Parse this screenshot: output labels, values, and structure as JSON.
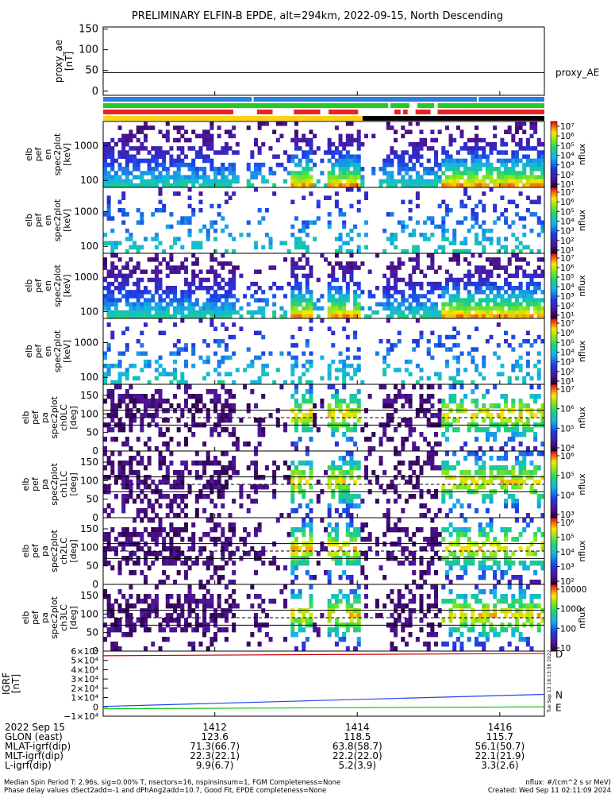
{
  "title": "PRELIMINARY ELFIN-B EPDE, alt=294km, 2022-09-15, North Descending",
  "chart_data": [
    {
      "type": "line",
      "panel": "proxy_ae",
      "ylabel": [
        "proxy_ae",
        "[nT]"
      ],
      "ylim": [
        -10,
        155
      ],
      "yticks": [
        "150",
        "100",
        "50",
        "0"
      ],
      "ytick_values": [
        150,
        100,
        50,
        0
      ],
      "series": [
        {
          "name": "proxy_AE",
          "x": [
            0,
            1
          ],
          "values": [
            45,
            45
          ],
          "color": "#000000"
        }
      ]
    },
    {
      "type": "table",
      "panel": "status-bars",
      "bars": [
        {
          "color": "#2a7de1",
          "segments": [
            [
              0,
              0.337
            ],
            [
              0.341,
              0.847
            ],
            [
              0.851,
              1
            ]
          ]
        },
        {
          "color": "#22cc22",
          "segments": [
            [
              0,
              0.646
            ],
            [
              0.651,
              0.694
            ],
            [
              0.712,
              0.75
            ],
            [
              0.758,
              1
            ]
          ]
        },
        {
          "color": "#ee2222",
          "segments": [
            [
              0,
              0.295
            ],
            [
              0.349,
              0.384
            ],
            [
              0.432,
              0.492
            ],
            [
              0.511,
              0.578
            ],
            [
              0.66,
              0.674
            ],
            [
              0.68,
              0.69
            ],
            [
              0.708,
              0.742
            ],
            [
              0.758,
              1
            ]
          ]
        },
        {
          "color": "#ffd21a",
          "segments": [
            [
              0,
              0.588
            ]
          ]
        },
        {
          "color": "#000000",
          "segments": [
            [
              0.588,
              1
            ]
          ]
        }
      ]
    },
    {
      "type": "heatmap",
      "panel": "pef-en-1",
      "ylabel": [
        "elb",
        "pef",
        "en",
        "spec2plot",
        "[keV]"
      ],
      "yscale": "log",
      "yticks": [
        "1000",
        "100"
      ],
      "ytick_values": [
        1000,
        100
      ],
      "ylim": [
        63,
        5000
      ],
      "colorbar": {
        "label": "nflux",
        "ticks": [
          "10⁷",
          "10⁶",
          "10⁵",
          "10⁴",
          "10³",
          "10²",
          "10¹"
        ]
      }
    },
    {
      "type": "heatmap",
      "panel": "pef-en-2",
      "ylabel": [
        "elb",
        "pef",
        "en",
        "spec2plot",
        "[keV]"
      ],
      "yscale": "log",
      "yticks": [
        "1000",
        "100"
      ],
      "ytick_values": [
        1000,
        100
      ],
      "ylim": [
        63,
        5000
      ],
      "colorbar": {
        "label": "nflux",
        "ticks": [
          "10⁷",
          "10⁶",
          "10⁵",
          "10⁴",
          "10³",
          "10²",
          "10¹"
        ]
      }
    },
    {
      "type": "heatmap",
      "panel": "pef-en-3",
      "ylabel": [
        "elb",
        "pef",
        "en",
        "spec2plot",
        "[keV]"
      ],
      "yscale": "log",
      "yticks": [
        "1000",
        "100"
      ],
      "ytick_values": [
        1000,
        100
      ],
      "ylim": [
        63,
        5000
      ],
      "colorbar": {
        "label": "nflux",
        "ticks": [
          "10⁷",
          "10⁶",
          "10⁵",
          "10⁴",
          "10³",
          "10²",
          "10¹"
        ]
      }
    },
    {
      "type": "heatmap",
      "panel": "pef-en-4",
      "ylabel": [
        "elb",
        "pef",
        "en",
        "spec2plot",
        "[keV]"
      ],
      "yscale": "log",
      "yticks": [
        "1000",
        "100"
      ],
      "ytick_values": [
        1000,
        100
      ],
      "ylim": [
        63,
        5000
      ],
      "colorbar": {
        "label": "nflux",
        "ticks": [
          "10⁷",
          "10⁶",
          "10⁵",
          "10⁴",
          "10³",
          "10²",
          "10¹"
        ]
      }
    },
    {
      "type": "heatmap",
      "panel": "pa-ch0",
      "ylabel": [
        "elb",
        "pef",
        "pa",
        "spec2plot",
        "ch0LC",
        "[deg]"
      ],
      "yticks": [
        "150",
        "100",
        "50",
        "0"
      ],
      "ytick_values": [
        150,
        100,
        50,
        0
      ],
      "ylim": [
        0,
        180
      ],
      "colorbar": {
        "label": "nflux",
        "ticks": [
          "10⁷",
          "10⁶",
          "10⁵",
          "10⁴"
        ]
      }
    },
    {
      "type": "heatmap",
      "panel": "pa-ch1",
      "ylabel": [
        "elb",
        "pef",
        "pa",
        "spec2plot",
        "ch1LC",
        "[deg]"
      ],
      "yticks": [
        "150",
        "100",
        "50",
        "0"
      ],
      "ytick_values": [
        150,
        100,
        50,
        0
      ],
      "ylim": [
        0,
        180
      ],
      "colorbar": {
        "label": "nflux",
        "ticks": [
          "10⁶",
          "10⁵",
          "10⁴",
          "10³"
        ]
      }
    },
    {
      "type": "heatmap",
      "panel": "pa-ch2",
      "ylabel": [
        "elb",
        "pef",
        "pa",
        "spec2plot",
        "ch2LC",
        "[deg]"
      ],
      "yticks": [
        "150",
        "100",
        "50",
        "0"
      ],
      "ytick_values": [
        150,
        100,
        50,
        0
      ],
      "ylim": [
        0,
        180
      ],
      "colorbar": {
        "label": "nflux",
        "ticks": [
          "10⁶",
          "10⁵",
          "10⁴",
          "10³",
          "10²"
        ]
      }
    },
    {
      "type": "heatmap",
      "panel": "pa-ch3",
      "ylabel": [
        "elb",
        "pef",
        "pa",
        "spec2plot",
        "ch3LC",
        "[deg]"
      ],
      "yticks": [
        "150",
        "100",
        "50",
        "0"
      ],
      "ytick_values": [
        150,
        100,
        50,
        0
      ],
      "ylim": [
        0,
        180
      ],
      "colorbar": {
        "label": "nflux",
        "ticks": [
          "10000",
          "1000",
          "100",
          "10"
        ]
      }
    },
    {
      "type": "line",
      "panel": "igrf",
      "ylabel": [
        "IGRF",
        "[nT]"
      ],
      "ylim": [
        -10000,
        60000
      ],
      "yticks": [
        "6×10⁴",
        "5×10⁴",
        "4×10⁴",
        "3×10⁴",
        "2×10⁴",
        "1×10⁴",
        "0",
        "−1×10⁴"
      ],
      "ytick_values": [
        60000,
        50000,
        40000,
        30000,
        20000,
        10000,
        0,
        -10000
      ],
      "series": [
        {
          "name": "D",
          "x": [
            0,
            0.6,
            1
          ],
          "values": [
            55000,
            56500,
            57500
          ],
          "color": "#cc0000"
        },
        {
          "name": "N",
          "x": [
            0,
            1
          ],
          "values": [
            500,
            13500
          ],
          "color": "#2244ee"
        },
        {
          "name": "E",
          "x": [
            0,
            1
          ],
          "values": [
            -2000,
            0
          ],
          "color": "#11cc11"
        }
      ],
      "side_note": "Tue Sep 13 18:13:56 2022"
    }
  ],
  "axis_table": {
    "rows": [
      {
        "label": "2022 Sep 15",
        "values": [
          "1412",
          "1414",
          "1416"
        ]
      },
      {
        "label": "GLON (east)",
        "values": [
          "123.6",
          "118.5",
          "115.7"
        ]
      },
      {
        "label": "MLAT-igrf(dip)",
        "values": [
          "71.3(66.7)",
          "63.8(58.7)",
          "56.1(50.7)"
        ]
      },
      {
        "label": "MLT-igrf(dip)",
        "values": [
          "22.3(22.1)",
          "22.2(22.0)",
          "22.1(21.9)"
        ]
      },
      {
        "label": "L-igrf(dip)",
        "values": [
          "9.9(6.7)",
          "5.2(3.9)",
          "3.3(2.6)"
        ]
      }
    ]
  },
  "footer": {
    "left_1": "Median Spin Period T: 2.96s, sig=0.00% T, nsectors=16, nspinsinsum=1, FGM Completeness=None",
    "left_2": "Phase delay values dSect2add=-1 and dPhAng2add=10.7, Good Fit, EPDE completeness=None",
    "right_1": "nflux: #/(cm^2 s sr MeV)",
    "right_2": "Created: Wed Sep 11 02:11:09 2024"
  },
  "colors": {
    "blue": "#2a7de1",
    "green": "#22cc22",
    "red": "#ee2222",
    "yellow": "#ffd21a"
  }
}
